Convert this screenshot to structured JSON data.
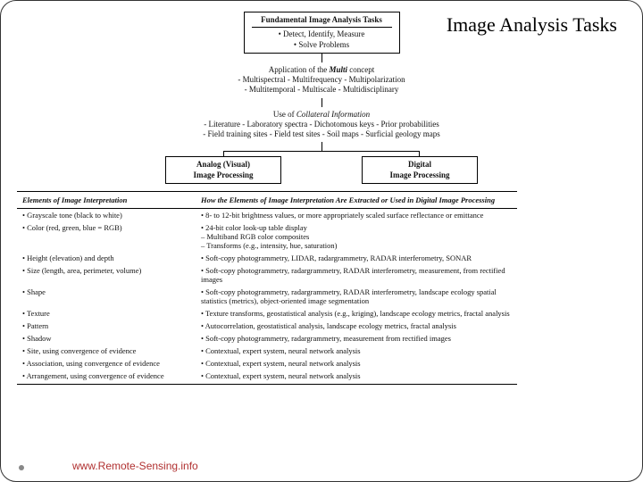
{
  "title": "Image Analysis Tasks",
  "fundamental": {
    "header": "Fundamental Image Analysis Tasks",
    "line1": "• Detect, Identify, Measure",
    "line2": "• Solve Problems"
  },
  "multi": {
    "l1a": "Application of the ",
    "l1b": "Multi",
    "l1c": " concept",
    "l2": "- Multispectral - Multifrequency - Multipolarization",
    "l3": "- Multitemporal - Multiscale - Multidisciplinary"
  },
  "collateral": {
    "l1a": "Use of ",
    "l1b": "Collateral Information",
    "l2": "- Literature - Laboratory spectra - Dichotomous keys - Prior probabilities",
    "l3": "- Field training sites - Field test sites - Soil maps - Surficial geology maps"
  },
  "proc": {
    "analog1": "Analog (Visual)",
    "analog2": "Image Processing",
    "digital1": "Digital",
    "digital2": "Image Processing"
  },
  "tableHead": {
    "left": "Elements of Image Interpretation",
    "right": "How the Elements of Image Interpretation Are Extracted or Used in Digital Image Processing"
  },
  "rows": [
    {
      "l": "• Grayscale tone (black to white)",
      "r": "• 8- to 12-bit brightness values, or more appropriately scaled surface reflectance or emittance"
    },
    {
      "l": "• Color (red, green, blue = RGB)",
      "r": "• 24-bit color look-up table display\n   – Multiband RGB color composites\n   – Transforms (e.g., intensity, hue, saturation)"
    },
    {
      "l": "• Height (elevation) and depth",
      "r": "• Soft-copy photogrammetry, LIDAR, radargrammetry, RADAR interferometry, SONAR"
    },
    {
      "l": "• Size (length, area, perimeter, volume)",
      "r": "• Soft-copy photogrammetry, radargrammetry, RADAR interferometry, measurement, from rectified images"
    },
    {
      "l": "• Shape",
      "r": "• Soft-copy photogrammetry, radargrammetry, RADAR interferometry, landscape ecology spatial statistics (metrics), object-oriented image segmentation"
    },
    {
      "l": "• Texture",
      "r": "• Texture transforms, geostatistical analysis (e.g., kriging), landscape ecology metrics, fractal analysis"
    },
    {
      "l": "• Pattern",
      "r": "• Autocorrelation, geostatistical analysis, landscape ecology metrics, fractal analysis"
    },
    {
      "l": "• Shadow",
      "r": "• Soft-copy photogrammetry, radargrammetry, measurement from rectified images"
    },
    {
      "l": "• Site, using convergence of evidence",
      "r": "• Contextual, expert system, neural network analysis"
    },
    {
      "l": "• Association, using convergence of evidence",
      "r": "• Contextual, expert system, neural network analysis"
    },
    {
      "l": "• Arrangement, using convergence of evidence",
      "r": "• Contextual, expert system, neural network analysis"
    }
  ],
  "footer": "www.Remote-Sensing.info"
}
